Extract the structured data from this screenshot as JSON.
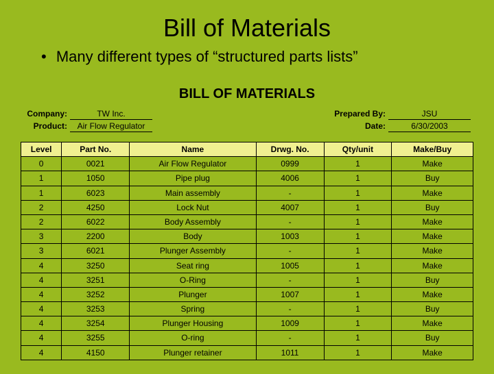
{
  "slide": {
    "title": "Bill of Materials",
    "bullet": "Many different types of “structured parts lists”"
  },
  "bom": {
    "heading": "BILL OF MATERIALS",
    "meta": {
      "company_label": "Company:",
      "company": "TW Inc.",
      "product_label": "Product:",
      "product": "Air Flow Regulator",
      "prepared_label": "Prepared By:",
      "prepared": "JSU",
      "date_label": "Date:",
      "date": "6/30/2003"
    },
    "columns": [
      "Level",
      "Part No.",
      "Name",
      "Drwg. No.",
      "Qty/unit",
      "Make/Buy"
    ],
    "rows": [
      [
        "0",
        "0021",
        "Air Flow Regulator",
        "0999",
        "1",
        "Make"
      ],
      [
        "1",
        "1050",
        "Pipe plug",
        "4006",
        "1",
        "Buy"
      ],
      [
        "1",
        "6023",
        "Main assembly",
        "-",
        "1",
        "Make"
      ],
      [
        "2",
        "4250",
        "Lock Nut",
        "4007",
        "1",
        "Buy"
      ],
      [
        "2",
        "6022",
        "Body Assembly",
        "-",
        "1",
        "Make"
      ],
      [
        "3",
        "2200",
        "Body",
        "1003",
        "1",
        "Make"
      ],
      [
        "3",
        "6021",
        "Plunger Assembly",
        "-",
        "1",
        "Make"
      ],
      [
        "4",
        "3250",
        "Seat ring",
        "1005",
        "1",
        "Make"
      ],
      [
        "4",
        "3251",
        "O-Ring",
        "-",
        "1",
        "Buy"
      ],
      [
        "4",
        "3252",
        "Plunger",
        "1007",
        "1",
        "Make"
      ],
      [
        "4",
        "3253",
        "Spring",
        "-",
        "1",
        "Buy"
      ],
      [
        "4",
        "3254",
        "Plunger Housing",
        "1009",
        "1",
        "Make"
      ],
      [
        "4",
        "3255",
        "O-ring",
        "-",
        "1",
        "Buy"
      ],
      [
        "4",
        "4150",
        "Plunger retainer",
        "1011",
        "1",
        "Make"
      ]
    ],
    "style": {
      "type": "table",
      "background_color": "#99ba1f",
      "header_fill": "#f0f090",
      "border_color": "#000000",
      "font_family": "Arial",
      "title_fontsize": 36,
      "bullet_fontsize": 22,
      "bom_heading_fontsize": 20,
      "meta_fontsize": 12,
      "cell_fontsize": 12,
      "column_widths_pct": [
        9,
        15,
        28,
        15,
        15,
        18
      ],
      "cell_align": "center"
    }
  }
}
